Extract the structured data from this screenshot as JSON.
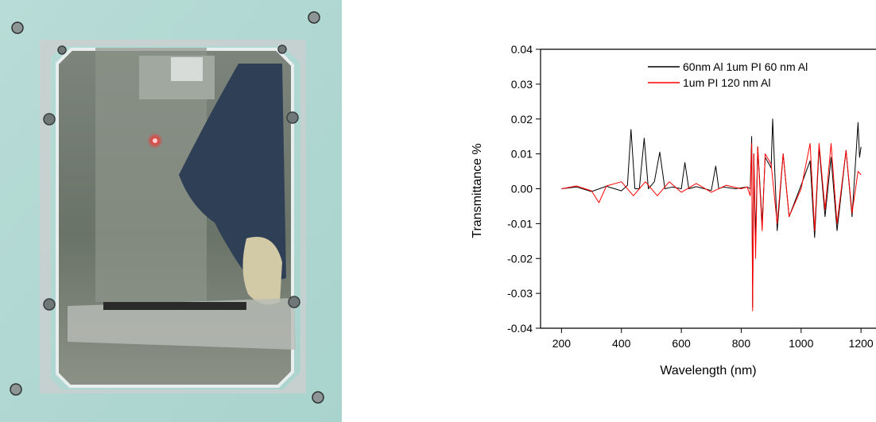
{
  "chart_data": {
    "type": "line",
    "xlabel": "Wavelength (nm)",
    "ylabel": "Transmittance %",
    "xlim": [
      130,
      1250
    ],
    "ylim": [
      -0.04,
      0.04
    ],
    "x_ticks": [
      200,
      400,
      600,
      800,
      1000,
      1200
    ],
    "y_ticks": [
      -0.04,
      -0.03,
      -0.02,
      -0.01,
      0.0,
      0.01,
      0.02,
      0.03,
      0.04
    ],
    "x_tick_labels": [
      "200",
      "400",
      "600",
      "800",
      "1000",
      "1200"
    ],
    "y_tick_labels": [
      "-0.04",
      "-0.03",
      "-0.02",
      "-0.01",
      "0.00",
      "0.01",
      "0.02",
      "0.03",
      "0.04"
    ],
    "legend_position": "top-right",
    "series": [
      {
        "name": "60nm Al 1um PI 60 nm Al",
        "color": "#000000",
        "x": [
          200,
          250,
          300,
          350,
          400,
          420,
          432,
          445,
          460,
          476,
          490,
          510,
          528,
          545,
          570,
          600,
          612,
          625,
          650,
          700,
          715,
          725,
          740,
          780,
          820,
          830,
          835,
          838,
          842,
          848,
          855,
          870,
          880,
          900,
          905,
          920,
          940,
          960,
          1000,
          1030,
          1045,
          1060,
          1080,
          1100,
          1120,
          1150,
          1170,
          1190,
          1195,
          1200
        ],
        "y": [
          0,
          0.0005,
          -0.0008,
          0.0007,
          -0.0006,
          0.001,
          0.017,
          0.0,
          0.0,
          0.0145,
          0.0,
          0.002,
          0.0105,
          0.0,
          0.0005,
          0.0,
          0.0075,
          0.0,
          0.0006,
          -0.0005,
          0.0065,
          0.0,
          0.0005,
          0.0,
          0.0005,
          0.0,
          0.015,
          -0.034,
          0.01,
          -0.015,
          0.012,
          -0.01,
          0.009,
          0.006,
          0.02,
          -0.012,
          0.01,
          -0.008,
          0.001,
          0.008,
          -0.014,
          0.012,
          -0.008,
          0.009,
          -0.012,
          0.011,
          -0.008,
          0.019,
          0.009,
          0.012
        ]
      },
      {
        "name": "1um PI 120 nm Al",
        "color": "#ff0000",
        "x": [
          200,
          250,
          300,
          325,
          350,
          400,
          440,
          480,
          520,
          560,
          600,
          650,
          700,
          750,
          800,
          820,
          830,
          835,
          838,
          842,
          848,
          855,
          870,
          880,
          900,
          920,
          940,
          960,
          1000,
          1030,
          1045,
          1060,
          1080,
          1100,
          1120,
          1150,
          1170,
          1190,
          1200
        ],
        "y": [
          0,
          0.0008,
          -0.0006,
          -0.004,
          0.0008,
          0.002,
          -0.002,
          0.002,
          -0.002,
          0.002,
          -0.001,
          0.0015,
          -0.001,
          0.001,
          0.0,
          0.0005,
          -0.002,
          0.013,
          -0.035,
          0.01,
          -0.02,
          0.012,
          -0.012,
          0.01,
          0.007,
          -0.01,
          0.01,
          -0.008,
          0.0,
          0.013,
          -0.012,
          0.013,
          -0.006,
          0.013,
          -0.01,
          0.011,
          -0.007,
          0.005,
          0.004
        ]
      }
    ]
  }
}
